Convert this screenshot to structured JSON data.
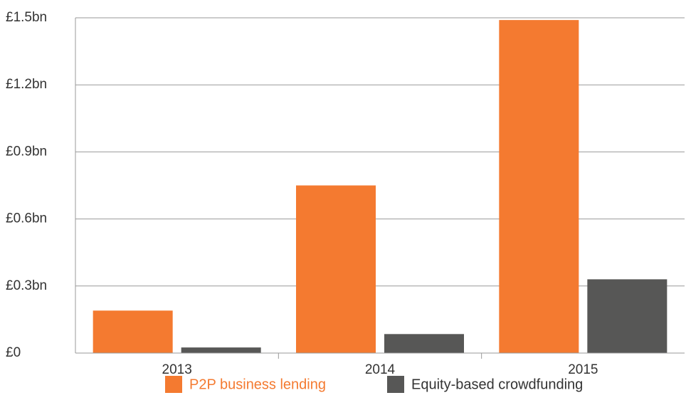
{
  "chart_data": {
    "type": "bar",
    "categories": [
      "2013",
      "2014",
      "2015"
    ],
    "series": [
      {
        "name": "P2P business lending",
        "color": "#f47a30",
        "values": [
          0.19,
          0.75,
          1.49
        ]
      },
      {
        "name": "Equity-based crowdfunding",
        "color": "#575756",
        "values": [
          0.025,
          0.085,
          0.33
        ]
      }
    ],
    "ylim": [
      0,
      1.5
    ],
    "yticks": [
      {
        "value": 0,
        "label": "£0"
      },
      {
        "value": 0.3,
        "label": "£0.3bn"
      },
      {
        "value": 0.6,
        "label": "£0.6bn"
      },
      {
        "value": 0.9,
        "label": "£0.9bn"
      },
      {
        "value": 1.2,
        "label": "£1.2bn"
      },
      {
        "value": 1.5,
        "label": "£1.5bn"
      }
    ],
    "grid": true,
    "legend": "bottom"
  }
}
